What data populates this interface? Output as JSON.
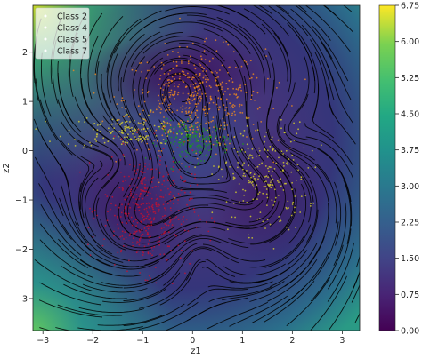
{
  "chart_data": {
    "type": "scatter",
    "xlabel": "z1",
    "ylabel": "z2",
    "xlim": [
      -3.2,
      3.35
    ],
    "ylim": [
      -3.65,
      2.95
    ],
    "x_ticks": [
      -3,
      -2,
      -1,
      0,
      1,
      2,
      3
    ],
    "y_ticks": [
      -3,
      -2,
      -1,
      0,
      1,
      2
    ],
    "background": "vector-field magnitude heatmap (viridis) with black streamlines",
    "colorbar": {
      "cmap": "viridis",
      "range": [
        0.0,
        6.75
      ],
      "ticks": [
        "0.00",
        "0.75",
        "1.50",
        "2.25",
        "3.00",
        "3.75",
        "4.50",
        "5.25",
        "6.00",
        "6.75"
      ]
    },
    "legend": {
      "position": "top-left",
      "entries": [
        {
          "label": "Class 2",
          "color": "#ffffff"
        },
        {
          "label": "Class 4",
          "color": "#ffffff"
        },
        {
          "label": "Class 5",
          "color": "#ffffff"
        },
        {
          "label": "Class 7",
          "color": "#ffffff"
        }
      ]
    },
    "series": [
      {
        "color": "#f08a1e",
        "center": [
          0.05,
          1.05
        ],
        "spread": [
          0.7,
          0.5
        ],
        "count": 480
      },
      {
        "color": "#d8d12a",
        "center": [
          -1.25,
          0.4
        ],
        "spread": [
          0.65,
          0.18
        ],
        "count": 150
      },
      {
        "color": "#d8d12a",
        "center": [
          1.4,
          -0.55
        ],
        "spread": [
          0.45,
          0.55
        ],
        "count": 230
      },
      {
        "color": "#1b9a1b",
        "center": [
          0.05,
          0.2
        ],
        "spread": [
          0.35,
          0.2
        ],
        "count": 180
      },
      {
        "color": "#c8102e",
        "center": [
          -0.9,
          -1.2
        ],
        "spread": [
          0.45,
          0.6
        ],
        "count": 420
      }
    ]
  }
}
